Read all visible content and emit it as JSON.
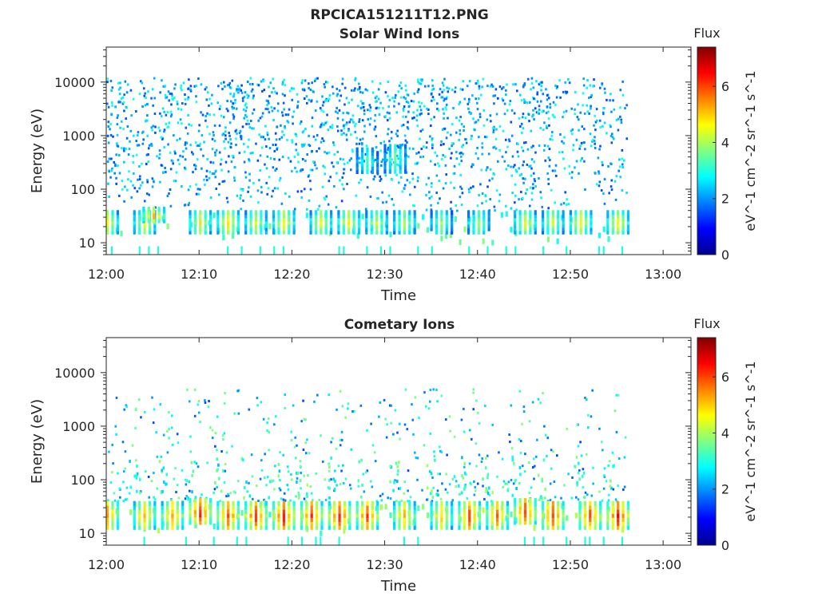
{
  "figure": {
    "title": "RPCICA151211T12.PNG"
  },
  "colormap": {
    "name": "jet",
    "stops": [
      "#00008f",
      "#0000ff",
      "#0080ff",
      "#00ffff",
      "#80ff80",
      "#ffff00",
      "#ff8000",
      "#ff0000",
      "#800000"
    ]
  },
  "chart_data": [
    {
      "type": "heatmap",
      "title": "Solar Wind Ions",
      "xlabel": "Time",
      "ylabel": "Energy (eV)",
      "x_scale": "time",
      "y_scale": "log",
      "xlim": [
        "12:00",
        "13:03"
      ],
      "ylim": [
        6,
        45000
      ],
      "x_ticks": [
        "12:00",
        "12:10",
        "12:20",
        "12:30",
        "12:40",
        "12:50",
        "13:00"
      ],
      "y_ticks": [
        "10",
        "100",
        "1000",
        "10000"
      ],
      "data_end_time": "12:56",
      "colorbar": {
        "title": "Flux",
        "label": "eV^-1 cm^-2 sr^-1 s^-1",
        "range": [
          0,
          7.4
        ],
        "ticks": [
          "0",
          "2",
          "4",
          "6"
        ]
      },
      "features": [
        {
          "time": "12:00",
          "energy_min": 15,
          "energy_max": 40,
          "level": 4.6
        },
        {
          "time": "12:04",
          "energy_min": 15,
          "energy_max": 40,
          "level": 4.4
        },
        {
          "time": "12:05",
          "energy_min": 25,
          "energy_max": 45,
          "level": 5.2
        },
        {
          "time": "12:10",
          "energy_min": 15,
          "energy_max": 40,
          "level": 4.6
        },
        {
          "time": "12:13",
          "energy_min": 15,
          "energy_max": 40,
          "level": 4.8
        },
        {
          "time": "12:16",
          "energy_min": 15,
          "energy_max": 40,
          "level": 4.4
        },
        {
          "time": "12:19",
          "energy_min": 15,
          "energy_max": 40,
          "level": 4.6
        },
        {
          "time": "12:23",
          "energy_min": 15,
          "energy_max": 40,
          "level": 4.4
        },
        {
          "time": "12:26",
          "energy_min": 15,
          "energy_max": 40,
          "level": 4.6
        },
        {
          "time": "12:29",
          "energy_min": 15,
          "energy_max": 40,
          "level": 4.2
        },
        {
          "time": "12:28",
          "energy_min": 200,
          "energy_max": 600,
          "level": 3.4
        },
        {
          "time": "12:31",
          "energy_min": 200,
          "energy_max": 700,
          "level": 3.6
        },
        {
          "time": "12:32",
          "energy_min": 15,
          "energy_max": 40,
          "level": 4.0
        },
        {
          "time": "12:36",
          "energy_min": 15,
          "energy_max": 40,
          "level": 3.8
        },
        {
          "time": "12:40",
          "energy_min": 15,
          "energy_max": 40,
          "level": 3.8
        },
        {
          "time": "12:45",
          "energy_min": 15,
          "energy_max": 40,
          "level": 4.4
        },
        {
          "time": "12:48",
          "energy_min": 15,
          "energy_max": 40,
          "level": 4.2
        },
        {
          "time": "12:51",
          "energy_min": 15,
          "energy_max": 40,
          "level": 4.6
        },
        {
          "time": "12:55",
          "energy_min": 15,
          "energy_max": 40,
          "level": 4.6
        }
      ]
    },
    {
      "type": "heatmap",
      "title": "Cometary Ions",
      "xlabel": "Time",
      "ylabel": "Energy (eV)",
      "x_scale": "time",
      "y_scale": "log",
      "xlim": [
        "12:00",
        "13:03"
      ],
      "ylim": [
        6,
        45000
      ],
      "x_ticks": [
        "12:00",
        "12:10",
        "12:20",
        "12:30",
        "12:40",
        "12:50",
        "13:00"
      ],
      "y_ticks": [
        "10",
        "100",
        "1000",
        "10000"
      ],
      "data_end_time": "12:56",
      "colorbar": {
        "title": "Flux",
        "label": "eV^-1 cm^-2 sr^-1 s^-1",
        "range": [
          0,
          7.4
        ],
        "ticks": [
          "0",
          "2",
          "4",
          "6"
        ]
      },
      "features": [
        {
          "time": "12:00",
          "energy_min": 12,
          "energy_max": 40,
          "level": 5.6
        },
        {
          "time": "12:04",
          "energy_min": 12,
          "energy_max": 40,
          "level": 5.2
        },
        {
          "time": "12:07",
          "energy_min": 12,
          "energy_max": 40,
          "level": 5.4
        },
        {
          "time": "12:10",
          "energy_min": 15,
          "energy_max": 45,
          "level": 6.4
        },
        {
          "time": "12:13",
          "energy_min": 12,
          "energy_max": 40,
          "level": 6.0
        },
        {
          "time": "12:16",
          "energy_min": 12,
          "energy_max": 40,
          "level": 6.2
        },
        {
          "time": "12:19",
          "energy_min": 12,
          "energy_max": 40,
          "level": 6.4
        },
        {
          "time": "12:22",
          "energy_min": 12,
          "energy_max": 40,
          "level": 6.0
        },
        {
          "time": "12:25",
          "energy_min": 12,
          "energy_max": 40,
          "level": 6.2
        },
        {
          "time": "12:28",
          "energy_min": 12,
          "energy_max": 40,
          "level": 6.0
        },
        {
          "time": "12:32",
          "energy_min": 12,
          "energy_max": 40,
          "level": 5.2
        },
        {
          "time": "12:36",
          "energy_min": 12,
          "energy_max": 40,
          "level": 5.0
        },
        {
          "time": "12:39",
          "energy_min": 12,
          "energy_max": 40,
          "level": 6.0
        },
        {
          "time": "12:42",
          "energy_min": 12,
          "energy_max": 40,
          "level": 5.6
        },
        {
          "time": "12:45",
          "energy_min": 15,
          "energy_max": 45,
          "level": 6.2
        },
        {
          "time": "12:48",
          "energy_min": 12,
          "energy_max": 40,
          "level": 6.2
        },
        {
          "time": "12:52",
          "energy_min": 12,
          "energy_max": 40,
          "level": 6.0
        },
        {
          "time": "12:55",
          "energy_min": 12,
          "energy_max": 40,
          "level": 6.4
        }
      ]
    }
  ]
}
